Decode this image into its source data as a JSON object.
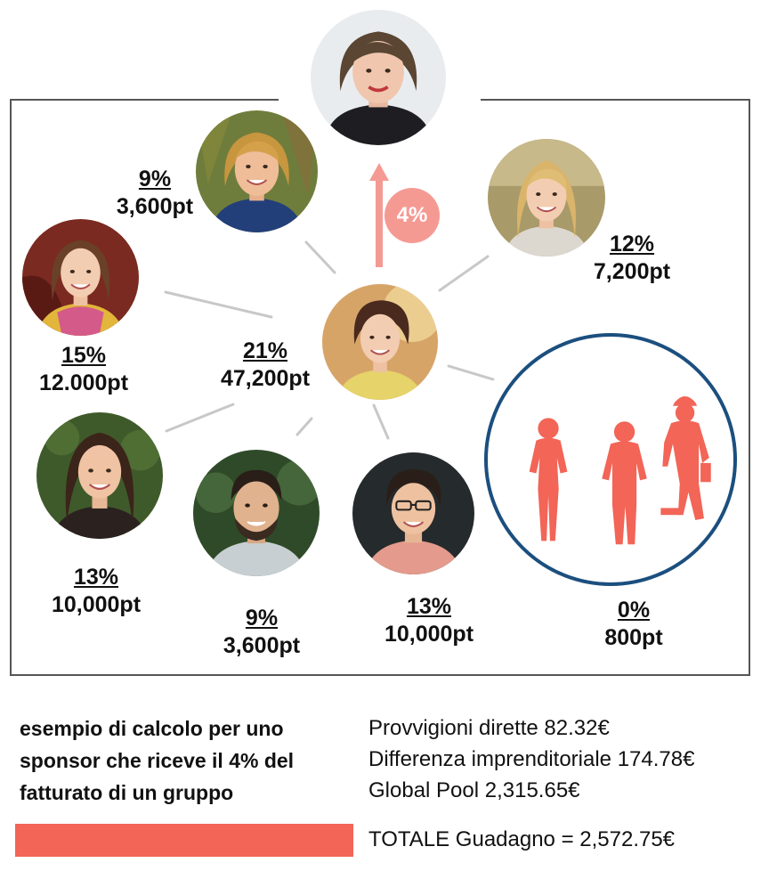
{
  "colors": {
    "frame": "#555555",
    "connector": "#c8c8c8",
    "arrow": "#f59a93",
    "team_ring": "#1b4f7e",
    "silhouette": "#f26557",
    "total_bar": "#f26557"
  },
  "sponsor_badge": {
    "label": "4%"
  },
  "nodes": {
    "center": {
      "percent": "21%",
      "points": "47,200pt"
    },
    "top_left": {
      "percent": "9%",
      "points": "3,600pt"
    },
    "top_right": {
      "percent": "12%",
      "points": "7,200pt"
    },
    "left": {
      "percent": "15%",
      "points": "12.000pt"
    },
    "bottom_left": {
      "percent": "13%",
      "points": "10,000pt"
    },
    "bottom_middle": {
      "percent": "9%",
      "points": "3,600pt"
    },
    "bottom_right": {
      "percent": "13%",
      "points": "10,000pt"
    },
    "team": {
      "percent": "0%",
      "points": "800pt"
    }
  },
  "summary": {
    "description": "esempio di calcolo per uno sponsor che riceve il 4% del fatturato di un gruppo",
    "lines": [
      "Provvigioni dirette 82.32€",
      "Differenza imprenditoriale 174.78€",
      "Global Pool 2,315.65€"
    ],
    "total": "TOTALE Guadagno = 2,572.75€"
  }
}
